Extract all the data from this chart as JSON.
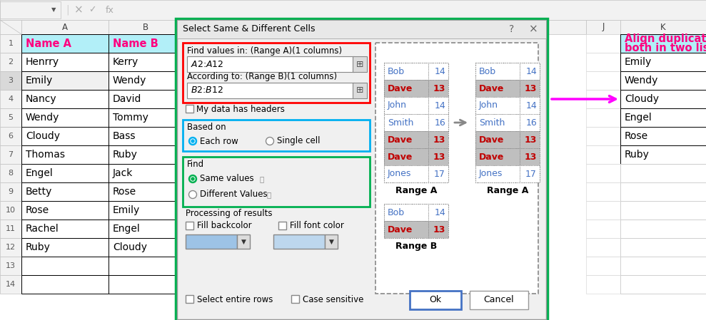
{
  "col_A_header": "Name A",
  "col_B_header": "Name B",
  "col_A_data": [
    "Henrry",
    "Emily",
    "Nancy",
    "Wendy",
    "Cloudy",
    "Thomas",
    "Engel",
    "Betty",
    "Rose",
    "Rachel",
    "Ruby"
  ],
  "col_B_data": [
    "Kerry",
    "Wendy",
    "David",
    "Tommy",
    "Bass",
    "Ruby",
    "Jack",
    "Rose",
    "Emily",
    "Engel",
    "Cloudy"
  ],
  "col_K_header_line1": "Align duplicates",
  "col_K_header_line2": "both in two lists",
  "col_K_data": [
    "Emily",
    "Wendy",
    "Cloudy",
    "Engel",
    "Rose",
    "Ruby"
  ],
  "dialog_title": "Select Same & Different Cells",
  "range_a_label": "Find values in: (Range A)(1 columns)",
  "range_a_value": "$A$2:$A$12",
  "range_b_label": "According to: (Range B)(1 columns)",
  "range_b_value": "$B$2:$B$12",
  "checkbox_headers": "My data has headers",
  "based_on_label": "Based on",
  "radio1": "Each row",
  "radio2": "Single cell",
  "find_label": "Find",
  "same_values": "Same values",
  "diff_values": "Different Values",
  "processing_label": "Processing of results",
  "fill_backcolor": "Fill backcolor",
  "fill_fontcolor": "Fill font color",
  "select_entire": "Select entire rows",
  "case_sensitive": "Case sensitive",
  "ok_btn": "Ok",
  "cancel_btn": "Cancel",
  "range_a_items": [
    {
      "name": "Bob",
      "val": 14,
      "dup": false
    },
    {
      "name": "Dave",
      "val": 13,
      "dup": true
    },
    {
      "name": "John",
      "val": 14,
      "dup": false
    },
    {
      "name": "Smith",
      "val": 16,
      "dup": false
    },
    {
      "name": "Dave",
      "val": 13,
      "dup": true
    },
    {
      "name": "Dave",
      "val": 13,
      "dup": true
    },
    {
      "name": "Jones",
      "val": 17,
      "dup": false
    }
  ],
  "range_a2_items": [
    {
      "name": "Bob",
      "val": 14,
      "dup": false
    },
    {
      "name": "Dave",
      "val": 13,
      "dup": true
    },
    {
      "name": "John",
      "val": 14,
      "dup": false
    },
    {
      "name": "Smith",
      "val": 16,
      "dup": false
    },
    {
      "name": "Dave",
      "val": 13,
      "dup": true
    },
    {
      "name": "Dave",
      "val": 13,
      "dup": true
    },
    {
      "name": "Jones",
      "val": 17,
      "dup": false
    }
  ],
  "range_b_items": [
    {
      "name": "Bob",
      "val": 14,
      "dup": false
    },
    {
      "name": "Dave",
      "val": 13,
      "dup": true
    }
  ],
  "header_bg": "#b2eff8",
  "row_num_color": "#595959",
  "header_text_color": "#ff007f",
  "dup_text_color": "#c00000",
  "blue_val_color": "#4472c4",
  "dialog_border_green": "#00b050",
  "red_box_color": "#ff0000",
  "blue_box_color": "#00b0f0",
  "green_box_color": "#00b050",
  "arrow_color": "#ff00ff",
  "dup_bg_color": "#bfbfbf",
  "cell_border_dotted": "#888888"
}
